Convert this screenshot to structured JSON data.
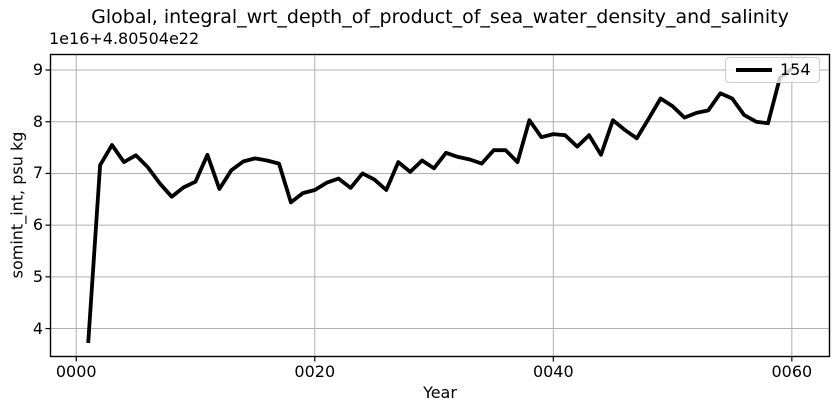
{
  "chart_data": {
    "type": "line",
    "title": "Global, integral_wrt_depth_of_product_of_sea_water_density_and_salinity",
    "offset_text": "1e16+4.80504e22",
    "xlabel": "Year",
    "ylabel": "somint_int, psu kg",
    "xlim": [
      -2.2,
      63.2
    ],
    "ylim": [
      3.45,
      9.31
    ],
    "grid": true,
    "xticks": {
      "values": [
        0,
        20,
        40,
        60
      ],
      "labels": [
        "0000",
        "0020",
        "0040",
        "0060"
      ]
    },
    "yticks": {
      "values": [
        4,
        5,
        6,
        7,
        8,
        9
      ],
      "labels": [
        "4",
        "5",
        "6",
        "7",
        "8",
        "9"
      ]
    },
    "legend": {
      "position": "upper right",
      "entries": [
        {
          "label": "154",
          "color": "#000000",
          "linewidth": 4
        }
      ]
    },
    "series": [
      {
        "name": "154",
        "color": "#000000",
        "linewidth": 3.8,
        "x": [
          1,
          2,
          3,
          4,
          5,
          6,
          7,
          8,
          9,
          10,
          11,
          12,
          13,
          14,
          15,
          16,
          17,
          18,
          19,
          20,
          21,
          22,
          23,
          24,
          25,
          26,
          27,
          28,
          29,
          30,
          31,
          32,
          33,
          34,
          35,
          36,
          37,
          38,
          39,
          40,
          41,
          42,
          43,
          44,
          45,
          46,
          47,
          48,
          49,
          50,
          51,
          52,
          53,
          54,
          55,
          56,
          57,
          58,
          59,
          60
        ],
        "values": [
          3.72,
          7.16,
          7.55,
          7.22,
          7.35,
          7.12,
          6.81,
          6.55,
          6.73,
          6.84,
          7.36,
          6.7,
          7.06,
          7.23,
          7.29,
          7.25,
          7.19,
          6.44,
          6.62,
          6.68,
          6.82,
          6.9,
          6.72,
          7.0,
          6.88,
          6.68,
          7.22,
          7.03,
          7.25,
          7.1,
          7.4,
          7.32,
          7.27,
          7.19,
          7.45,
          7.45,
          7.22,
          8.03,
          7.7,
          7.76,
          7.74,
          7.52,
          7.74,
          7.36,
          8.03,
          7.84,
          7.68,
          8.06,
          8.45,
          8.3,
          8.08,
          8.17,
          8.22,
          8.55,
          8.45,
          8.13,
          8.0,
          7.97,
          8.85,
          9.03
        ]
      }
    ],
    "colors": {
      "background": "#ffffff",
      "grid": "#b0b0b0",
      "spine": "#000000",
      "text": "#000000",
      "legend_border": "#cccccc"
    }
  }
}
